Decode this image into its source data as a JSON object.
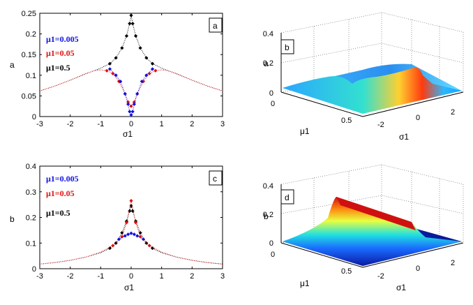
{
  "chart_data": [
    {
      "panel": "a",
      "type": "scatter",
      "xlabel": "σ1",
      "ylabel": "a",
      "xlim": [
        -3,
        3
      ],
      "ylim": [
        0,
        0.25
      ],
      "xticks": [
        "-3",
        "-2",
        "-1",
        "0",
        "1",
        "2",
        "3"
      ],
      "yticks": [
        "0",
        "0.05",
        "0.1",
        "0.15",
        "0.2",
        "0.25"
      ],
      "legend_placement": "top-left",
      "series": [
        {
          "name": "μ1=0.005",
          "color": "#1010e0",
          "x": [
            -0.7,
            -0.5,
            -0.35,
            -0.2,
            -0.1,
            -0.05,
            0,
            0.05,
            0.1,
            0.2,
            0.35,
            0.5,
            0.7
          ],
          "y": [
            0.115,
            0.1,
            0.085,
            0.055,
            0.03,
            0.012,
            0.004,
            0.012,
            0.03,
            0.055,
            0.085,
            0.1,
            0.115
          ]
        },
        {
          "name": "μ1=0.05",
          "color": "#e01010",
          "x": [
            -3,
            -2.5,
            -2,
            -1.5,
            -1.2,
            -1,
            -0.8,
            -0.6,
            -0.4,
            -0.2,
            -0.1,
            0,
            0.1,
            0.2,
            0.4,
            0.6,
            0.8,
            1,
            1.2,
            1.5,
            2,
            2.5,
            3
          ],
          "y": [
            0.062,
            0.074,
            0.088,
            0.104,
            0.111,
            0.113,
            0.111,
            0.104,
            0.085,
            0.055,
            0.035,
            0.025,
            0.035,
            0.055,
            0.085,
            0.104,
            0.111,
            0.113,
            0.111,
            0.104,
            0.088,
            0.074,
            0.062
          ]
        },
        {
          "name": "μ1=0.5",
          "color": "#000000",
          "x": [
            -3,
            -2.5,
            -2,
            -1.5,
            -1,
            -0.7,
            -0.5,
            -0.3,
            -0.15,
            -0.05,
            0,
            0.05,
            0.15,
            0.3,
            0.5,
            0.7,
            1,
            1.5,
            2,
            2.5,
            3
          ],
          "y": [
            0.062,
            0.074,
            0.088,
            0.103,
            0.117,
            0.128,
            0.142,
            0.166,
            0.195,
            0.225,
            0.245,
            0.225,
            0.195,
            0.166,
            0.142,
            0.128,
            0.117,
            0.103,
            0.088,
            0.074,
            0.062
          ]
        }
      ]
    },
    {
      "panel": "b",
      "type": "surface",
      "zlabel": "a",
      "xlabel": "σ1",
      "ylabel": "μ1",
      "zlim": [
        0,
        0.4
      ],
      "zticks": [
        "0",
        "0.2",
        "0.4"
      ],
      "xticks": [
        "-2",
        "0",
        "2"
      ],
      "yticks": [
        "0",
        "0.5"
      ]
    },
    {
      "panel": "c",
      "type": "scatter",
      "xlabel": "σ1",
      "ylabel": "b",
      "xlim": [
        -3,
        3
      ],
      "ylim": [
        0,
        0.4
      ],
      "xticks": [
        "-3",
        "-2",
        "-1",
        "0",
        "1",
        "2",
        "3"
      ],
      "yticks": [
        "0",
        "0.1",
        "0.2",
        "0.3",
        "0.4"
      ],
      "legend_placement": "top-left",
      "series": [
        {
          "name": "μ1=0.005",
          "color": "#1010e0",
          "x": [
            -0.4,
            -0.2,
            -0.1,
            0,
            0.1,
            0.2,
            0.4
          ],
          "y": [
            0.115,
            0.128,
            0.134,
            0.138,
            0.134,
            0.128,
            0.115
          ]
        },
        {
          "name": "μ1=0.05",
          "color": "#e01010",
          "x": [
            -3,
            -2.5,
            -2,
            -1.5,
            -1,
            -0.6,
            -0.3,
            -0.15,
            0,
            0.15,
            0.3,
            0.6,
            1,
            1.5,
            2,
            2.5,
            3
          ],
          "y": [
            0.018,
            0.024,
            0.033,
            0.045,
            0.065,
            0.09,
            0.125,
            0.18,
            0.265,
            0.18,
            0.125,
            0.09,
            0.065,
            0.045,
            0.033,
            0.024,
            0.018
          ]
        },
        {
          "name": "μ1=0.5",
          "color": "#000000",
          "x": [
            -3,
            -2.5,
            -2,
            -1.5,
            -1,
            -0.7,
            -0.5,
            -0.3,
            -0.15,
            -0.05,
            0,
            0.05,
            0.15,
            0.3,
            0.5,
            0.7,
            1,
            1.5,
            2,
            2.5,
            3
          ],
          "y": [
            0.018,
            0.024,
            0.033,
            0.045,
            0.062,
            0.08,
            0.1,
            0.14,
            0.185,
            0.225,
            0.245,
            0.225,
            0.185,
            0.14,
            0.1,
            0.08,
            0.062,
            0.045,
            0.033,
            0.024,
            0.018
          ]
        }
      ]
    },
    {
      "panel": "d",
      "type": "surface",
      "zlabel": "b",
      "xlabel": "σ1",
      "ylabel": "μ1",
      "zlim": [
        0,
        0.4
      ],
      "zticks": [
        "0",
        "0.2",
        "0.4"
      ],
      "xticks": [
        "-2",
        "0",
        "2"
      ],
      "yticks": [
        "0",
        "0.5"
      ]
    }
  ],
  "legend_a": {
    "l1": "μ1=0.005",
    "l2": "μ1=0.05",
    "l3": "μ1=0.5"
  },
  "legend_c": {
    "l1": "μ1=0.005",
    "l2": "μ1=0.05",
    "l3": "μ1=0.5"
  }
}
